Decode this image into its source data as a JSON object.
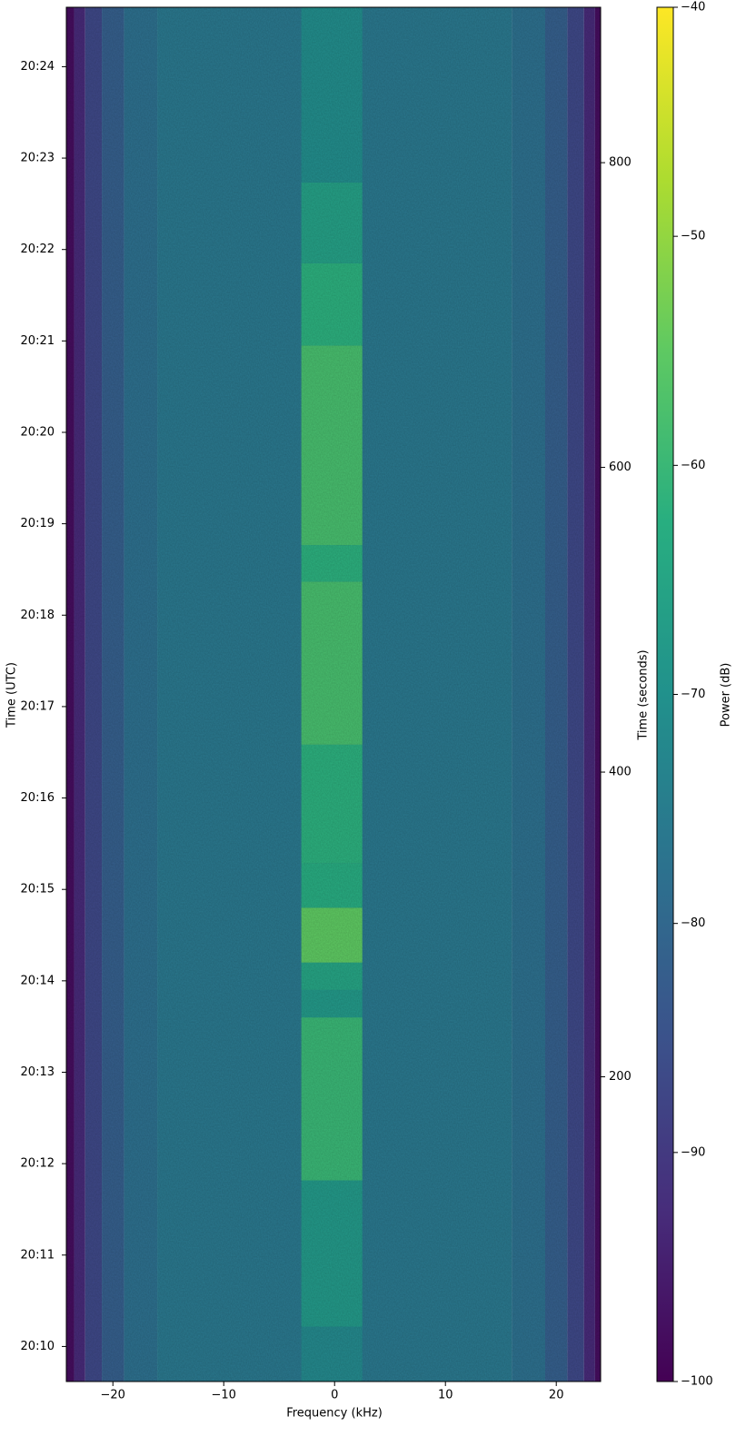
{
  "chart_data": {
    "type": "spectrogram",
    "xlabel": "Frequency (kHz)",
    "ylabel": "Time (UTC)",
    "y2label": "Time (seconds)",
    "colorbar_label": "Power (dB)",
    "colormap": "viridis",
    "xlim": [
      -24.2,
      24
    ],
    "xticks": [
      {
        "value": -20,
        "label": "−20"
      },
      {
        "value": -10,
        "label": "−10"
      },
      0,
      10,
      20
    ],
    "ylim": [
      0,
      902
    ],
    "yticks": [
      {
        "value": 23,
        "label": "20:10"
      },
      {
        "value": 83,
        "label": "20:11"
      },
      {
        "value": 143,
        "label": "20:12"
      },
      {
        "value": 203,
        "label": "20:13"
      },
      {
        "value": 263,
        "label": "20:14"
      },
      {
        "value": 323,
        "label": "20:15"
      },
      {
        "value": 383,
        "label": "20:16"
      },
      {
        "value": 443,
        "label": "20:17"
      },
      {
        "value": 503,
        "label": "20:18"
      },
      {
        "value": 563,
        "label": "20:19"
      },
      {
        "value": 623,
        "label": "20:20"
      },
      {
        "value": 683,
        "label": "20:21"
      },
      {
        "value": 743,
        "label": "20:22"
      },
      {
        "value": 803,
        "label": "20:23"
      },
      {
        "value": 863,
        "label": "20:24"
      }
    ],
    "y2lim": [
      0,
      902
    ],
    "y2ticks": [
      200,
      400,
      600,
      800
    ],
    "clim": [
      -100,
      -40
    ],
    "cticks": [
      {
        "value": -100,
        "label": "−100"
      },
      {
        "value": -90,
        "label": "−90"
      },
      {
        "value": -80,
        "label": "−80"
      },
      {
        "value": -70,
        "label": "−70"
      },
      {
        "value": -60,
        "label": "−60"
      },
      {
        "value": -50,
        "label": "−50"
      },
      {
        "value": -40,
        "label": "−40"
      }
    ],
    "background": {
      "freq_edges": [
        -24.2,
        -23.5,
        -22.5,
        -21,
        -19,
        -16,
        16,
        19,
        21,
        22.5,
        23.5,
        24
      ],
      "power": [
        -98,
        -93,
        -87,
        -82,
        -78,
        -76,
        -78,
        -82,
        -87,
        -93,
        -98
      ]
    },
    "signal": {
      "freq_range": [
        -3,
        2.5
      ],
      "time_edges": [
        0,
        36,
        132,
        239,
        257,
        275,
        311,
        340,
        418,
        525,
        549,
        680,
        734,
        787,
        902
      ],
      "power": [
        -72,
        -68,
        -60,
        -68,
        -65,
        -55,
        -63,
        -62,
        -58,
        -62,
        -58,
        -62,
        -66,
        -71
      ]
    }
  }
}
